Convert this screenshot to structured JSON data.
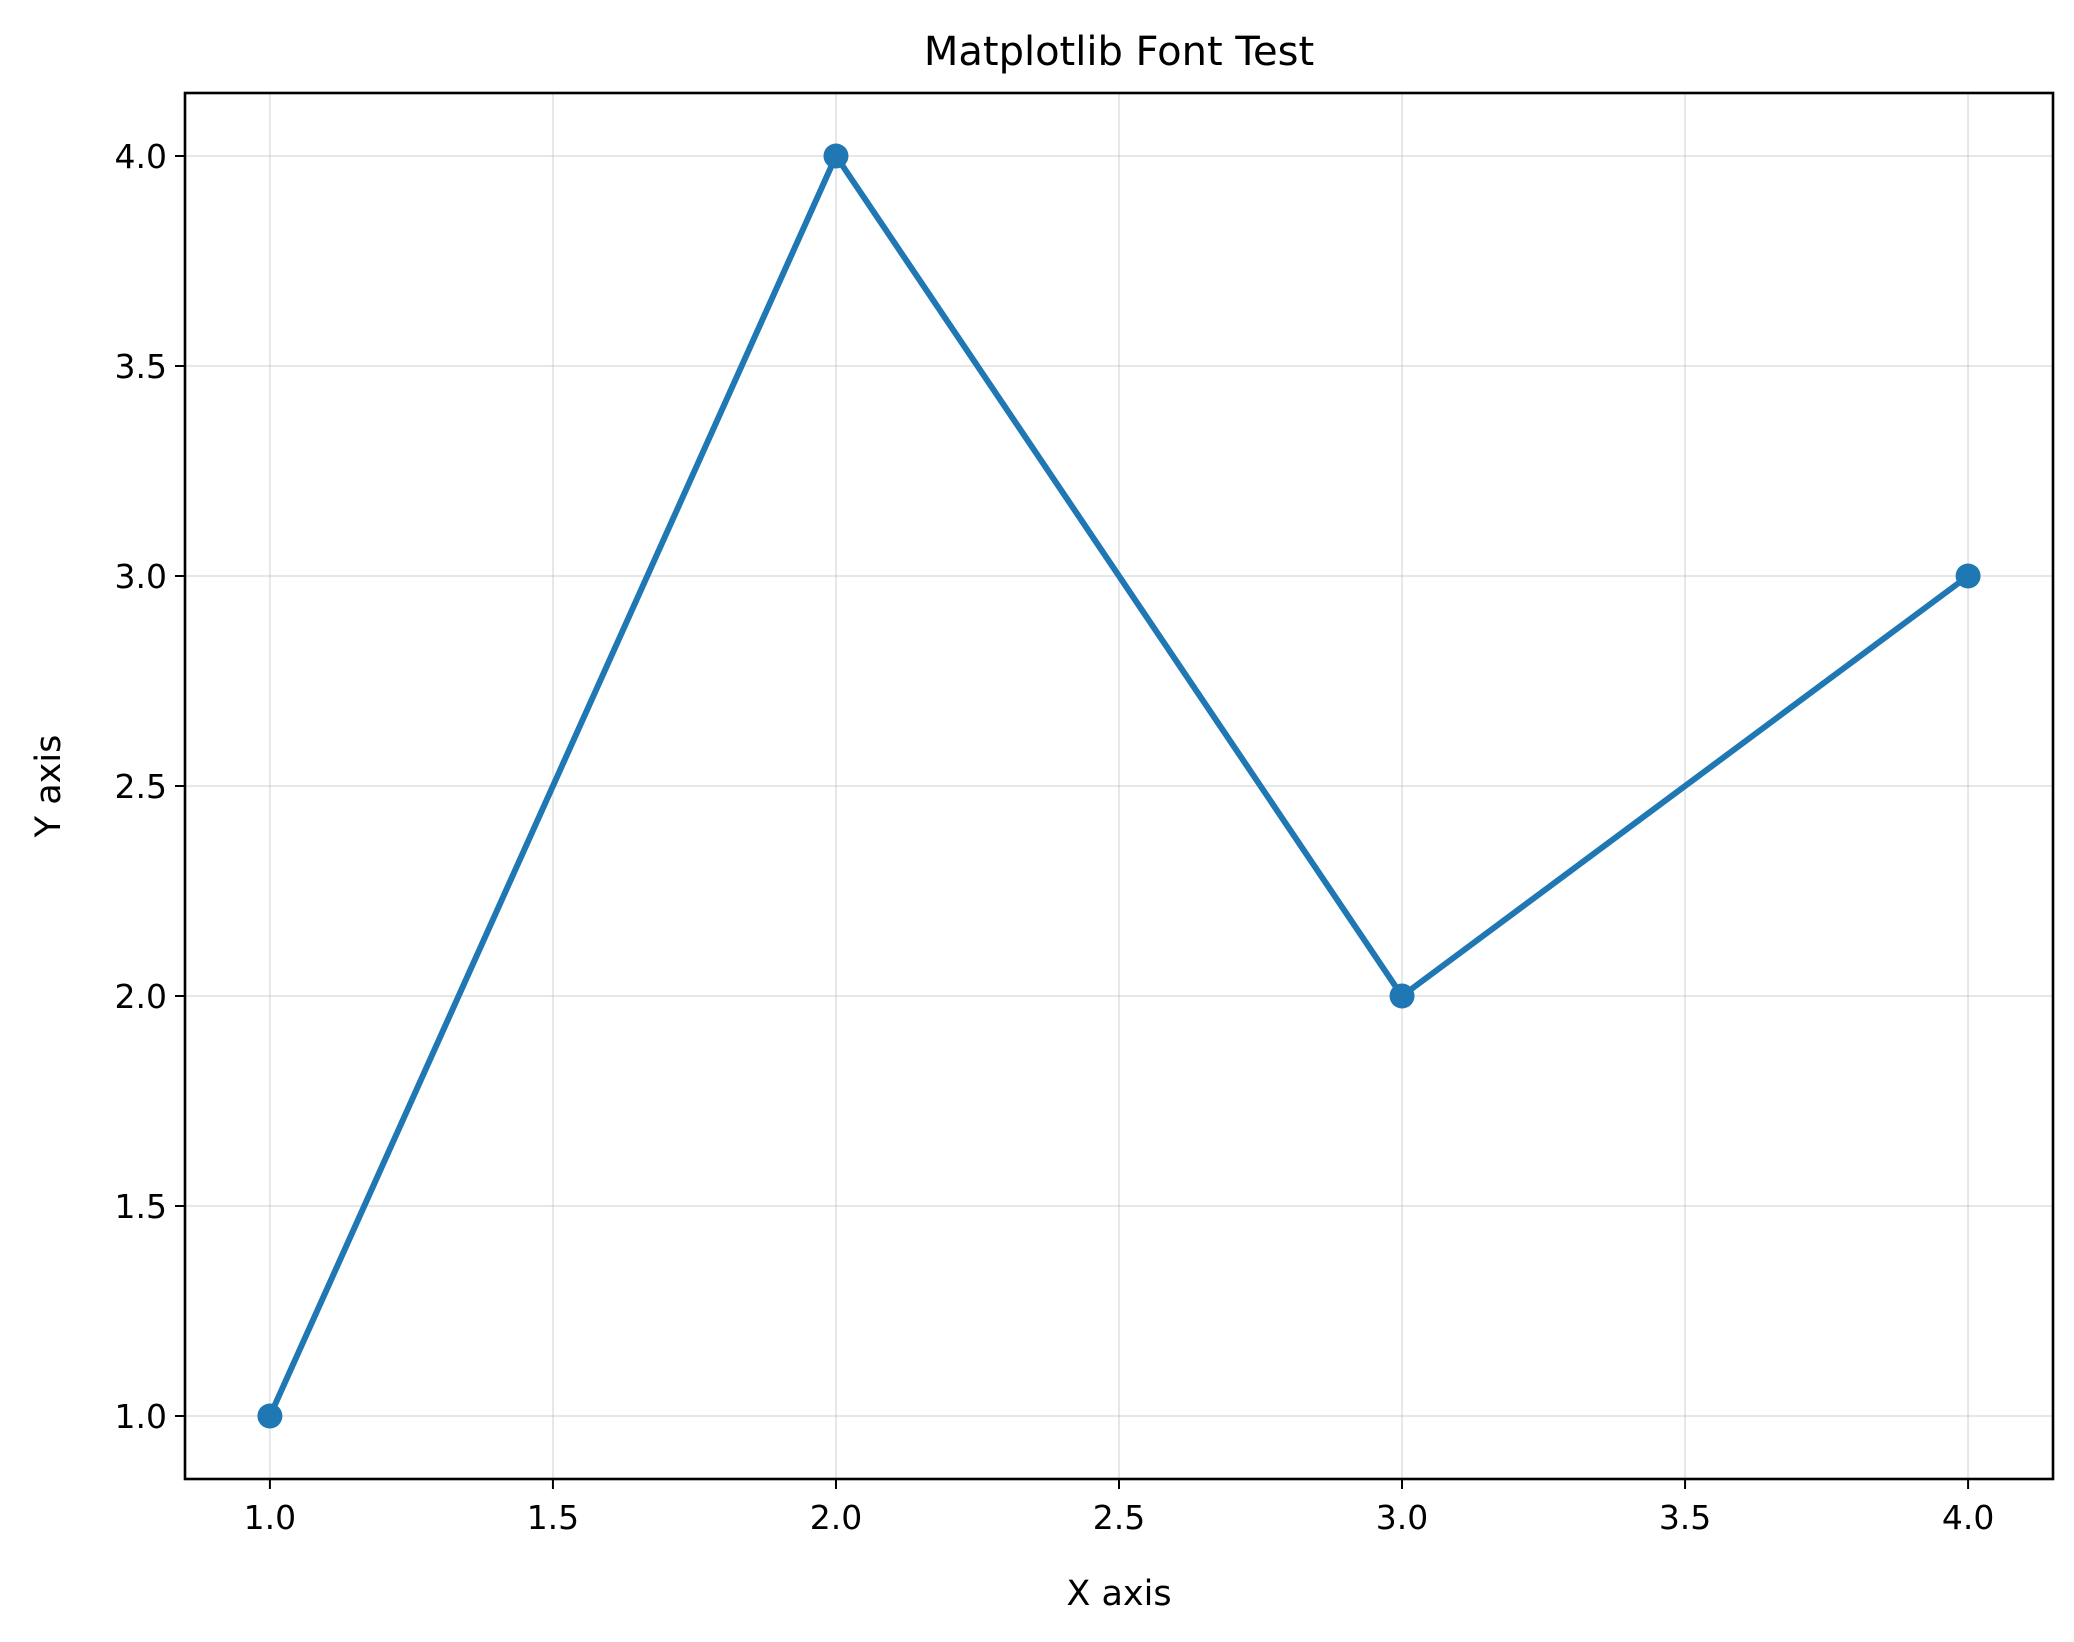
{
  "chart_data": {
    "type": "line",
    "title": "Matplotlib Font Test",
    "xlabel": "X axis",
    "ylabel": "Y axis",
    "x": [
      1,
      2,
      3,
      4
    ],
    "series": [
      {
        "values": [
          1,
          4,
          2,
          3
        ],
        "color": "#1f77b4",
        "marker": "circle"
      }
    ],
    "xlim": [
      0.85,
      4.15
    ],
    "ylim": [
      0.85,
      4.15
    ],
    "xticks": [
      1.0,
      1.5,
      2.0,
      2.5,
      3.0,
      3.5,
      4.0
    ],
    "xtick_labels": [
      "1.0",
      "1.5",
      "2.0",
      "2.5",
      "3.0",
      "3.5",
      "4.0"
    ],
    "yticks": [
      1.0,
      1.5,
      2.0,
      2.5,
      3.0,
      3.5,
      4.0
    ],
    "ytick_labels": [
      "1.0",
      "1.5",
      "2.0",
      "2.5",
      "3.0",
      "3.5",
      "4.0"
    ],
    "grid": true,
    "legend": "none"
  }
}
